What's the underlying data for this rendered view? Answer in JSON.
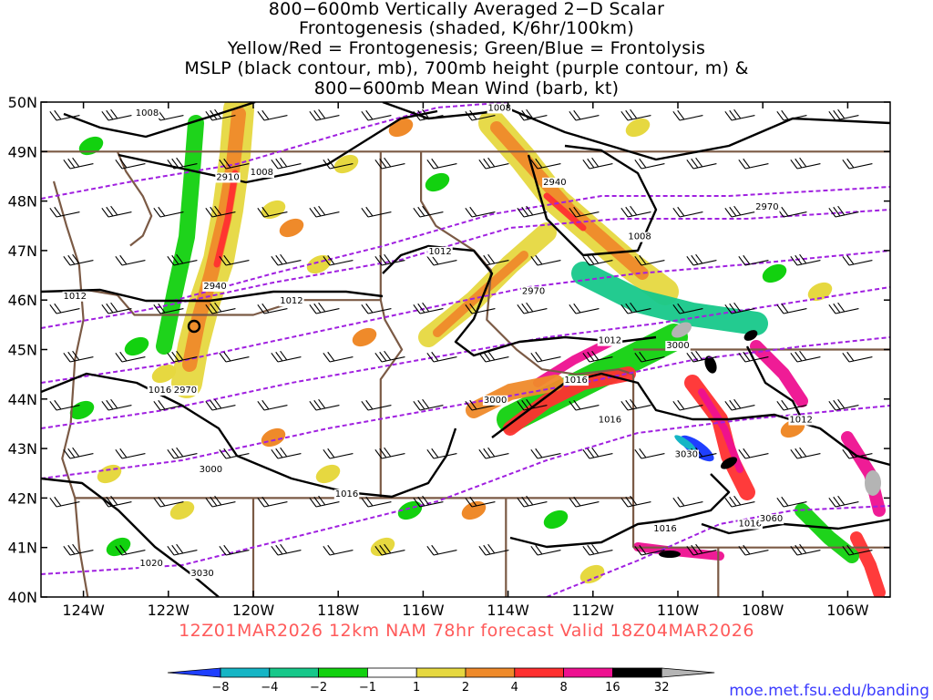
{
  "title": {
    "lines": [
      "800−600mb Vertically Averaged 2−D Scalar",
      "Frontogenesis (shaded, K/6hr/100km)",
      "Yellow/Red = Frontogenesis;  Green/Blue = Frontolysis",
      "MSLP (black contour, mb), 700mb height (purple contour, m) &",
      "800−600mb Mean Wind (barb, kt)"
    ]
  },
  "axes": {
    "lat_labels": [
      "50N",
      "49N",
      "48N",
      "47N",
      "46N",
      "45N",
      "44N",
      "43N",
      "42N",
      "41N",
      "40N"
    ],
    "lon_labels": [
      "124W",
      "122W",
      "120W",
      "118W",
      "116W",
      "114W",
      "112W",
      "110W",
      "108W",
      "106W"
    ],
    "lat_range": [
      40,
      50
    ],
    "lon_range": [
      -125,
      -105
    ]
  },
  "valid_text": "12Z01MAR2026 12km NAM 78hr forecast Valid 18Z04MAR2026",
  "credit": "moe.met.fsu.edu/banding",
  "colorbar": {
    "labels": [
      "−8",
      "−4",
      "−2",
      "−1",
      "1",
      "2",
      "4",
      "8",
      "16",
      "32"
    ],
    "colors": [
      "#1f3fff",
      "#15b5c5",
      "#17c88a",
      "#12d10f",
      "#ffffff",
      "#e6d840",
      "#ef8a2a",
      "#ff3030",
      "#ee1090",
      "#000000",
      "#b4b4b4"
    ]
  },
  "mslp_labels": [
    {
      "text": "1008",
      "lon": -122.5,
      "lat": 49.8
    },
    {
      "text": "1008",
      "lon": -114.2,
      "lat": 49.9
    },
    {
      "text": "1008",
      "lon": -119.8,
      "lat": 48.6
    },
    {
      "text": "1008",
      "lon": -110.9,
      "lat": 47.3
    },
    {
      "text": "1012",
      "lon": -115.6,
      "lat": 47.0
    },
    {
      "text": "1012",
      "lon": -124.2,
      "lat": 46.1
    },
    {
      "text": "1012",
      "lon": -119.1,
      "lat": 46.0
    },
    {
      "text": "1012",
      "lon": -111.6,
      "lat": 45.2
    },
    {
      "text": "1012",
      "lon": -107.1,
      "lat": 43.6
    },
    {
      "text": "1016",
      "lon": -122.2,
      "lat": 44.2
    },
    {
      "text": "1016",
      "lon": -112.4,
      "lat": 44.4
    },
    {
      "text": "1016",
      "lon": -111.6,
      "lat": 43.6
    },
    {
      "text": "1016",
      "lon": -117.8,
      "lat": 42.1
    },
    {
      "text": "1016",
      "lon": -110.3,
      "lat": 41.4
    },
    {
      "text": "1016",
      "lon": -108.3,
      "lat": 41.5
    },
    {
      "text": "1020",
      "lon": -122.4,
      "lat": 40.7
    }
  ],
  "height_labels": [
    {
      "text": "2910",
      "lon": -120.6,
      "lat": 48.5
    },
    {
      "text": "2940",
      "lon": -112.9,
      "lat": 48.4
    },
    {
      "text": "2940",
      "lon": -120.9,
      "lat": 46.3
    },
    {
      "text": "2970",
      "lon": -107.9,
      "lat": 47.9
    },
    {
      "text": "2970",
      "lon": -113.4,
      "lat": 46.2
    },
    {
      "text": "2970",
      "lon": -121.6,
      "lat": 44.2
    },
    {
      "text": "3000",
      "lon": -110.0,
      "lat": 45.1
    },
    {
      "text": "3000",
      "lon": -114.3,
      "lat": 44.0
    },
    {
      "text": "3000",
      "lon": -121.0,
      "lat": 42.6
    },
    {
      "text": "3030",
      "lon": -109.8,
      "lat": 42.9
    },
    {
      "text": "3030",
      "lon": -121.2,
      "lat": 40.5
    },
    {
      "text": "3060",
      "lon": -107.8,
      "lat": 41.6
    }
  ]
}
